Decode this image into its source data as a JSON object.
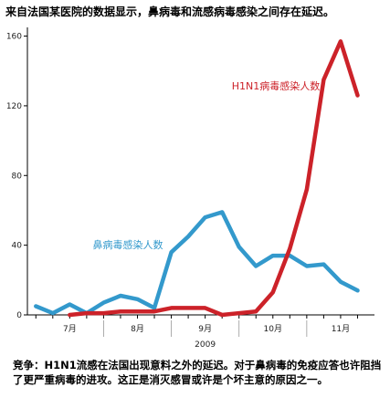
{
  "chart_data": {
    "type": "line",
    "title": "来自法国某医院的数据显示，鼻病毒和流感病毒感染之间存在延迟。",
    "caption": "竞争：H1N1流感在法国出现意料之外的延迟。对于鼻病毒的免疫应答也许阻挡了更严重病毒的进攻。这正是消灭感冒或许是个坏主意的原因之一。",
    "year_label": "2009",
    "x_tick_labels": [
      "7月",
      "8月",
      "9月",
      "10月",
      "11月"
    ],
    "x_tick_positions": [
      2,
      6,
      10,
      14,
      18
    ],
    "y_ticks": [
      0,
      40,
      80,
      120,
      160
    ],
    "ylim": [
      0,
      165
    ],
    "xlim": [
      -0.5,
      20
    ],
    "grid": false,
    "colors": {
      "rhinovirus": "#3399cc",
      "h1n1": "#cc2229"
    },
    "series": [
      {
        "name": "鼻病毒感染人数",
        "color": "#3399cc",
        "x": [
          0,
          1,
          2,
          3,
          4,
          5,
          6,
          7,
          8,
          9,
          10,
          11,
          12,
          13,
          14,
          15,
          16,
          17,
          18,
          19
        ],
        "values": [
          5,
          1,
          6,
          1,
          7,
          11,
          9,
          4,
          36,
          45,
          56,
          59,
          39,
          28,
          34,
          34,
          28,
          29,
          19,
          14
        ]
      },
      {
        "name": "H1N1病毒感染人数",
        "color": "#cc2229",
        "x": [
          2,
          3,
          4,
          5,
          6,
          7,
          8,
          9,
          10,
          11,
          12,
          13,
          14,
          15,
          16,
          17,
          18,
          19
        ],
        "values": [
          0,
          1,
          1,
          2,
          2,
          2,
          4,
          4,
          4,
          0,
          1,
          2,
          13,
          38,
          72,
          135,
          157,
          126
        ]
      }
    ]
  }
}
